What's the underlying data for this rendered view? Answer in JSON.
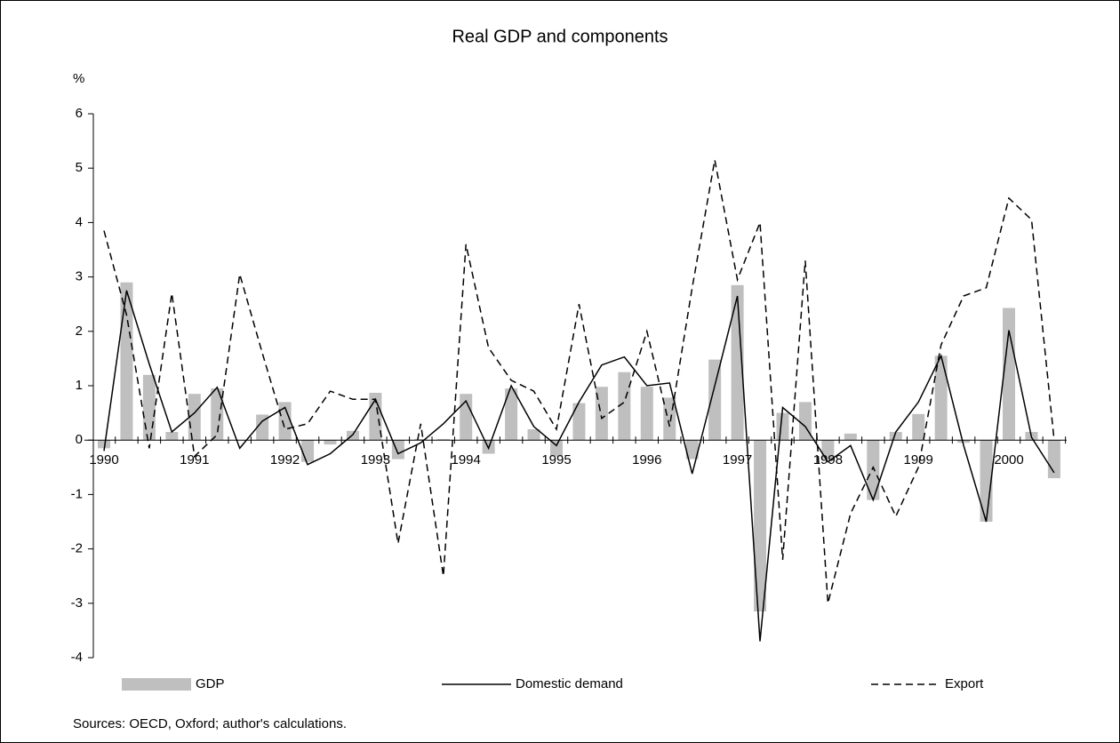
{
  "chart_data": {
    "type": "bar-line",
    "title": "Real GDP and components",
    "y_unit": "%",
    "source": "Sources: OECD, Oxford; author's calculations.",
    "categories": [
      "1990",
      null,
      null,
      null,
      "1991",
      null,
      null,
      null,
      "1992",
      null,
      null,
      null,
      "1993",
      null,
      null,
      null,
      "1994",
      null,
      null,
      null,
      "1995",
      null,
      null,
      null,
      "1996",
      null,
      null,
      null,
      "1997",
      null,
      null,
      null,
      "1998",
      null,
      null,
      null,
      "1999",
      null,
      null,
      null,
      "2000",
      null,
      null
    ],
    "series": [
      {
        "name": "GDP",
        "kind": "bar",
        "color": "#bfbfbf",
        "values": [
          -0.15,
          2.9,
          1.2,
          0.15,
          0.85,
          0.95,
          0,
          0.47,
          0.7,
          -0.4,
          -0.08,
          0.17,
          0.87,
          -0.35,
          0.02,
          0.02,
          0.85,
          -0.25,
          0.95,
          0.2,
          -0.3,
          0.68,
          0.98,
          1.25,
          0.98,
          0.78,
          -0.35,
          1.48,
          2.85,
          -3.15,
          0.5,
          0.7,
          -0.35,
          0.12,
          -1.1,
          0.15,
          0.48,
          1.55,
          -0.05,
          -1.5,
          2.43,
          0.15,
          -0.7
        ]
      },
      {
        "name": "Domestic demand",
        "kind": "line",
        "dash": "solid",
        "color": "#000000",
        "values": [
          -0.2,
          2.75,
          1.4,
          0.15,
          0.5,
          0.97,
          -0.15,
          0.35,
          0.6,
          -0.45,
          -0.25,
          0.1,
          0.75,
          -0.25,
          -0.05,
          0.3,
          0.72,
          -0.15,
          1.0,
          0.25,
          -0.1,
          0.7,
          1.38,
          1.53,
          1.0,
          1.05,
          -0.62,
          1.0,
          2.65,
          -3.7,
          0.6,
          0.25,
          -0.4,
          -0.1,
          -1.1,
          0.15,
          0.7,
          1.55,
          -0.1,
          -1.5,
          2.02,
          0.05,
          -0.6
        ]
      },
      {
        "name": "Export",
        "kind": "line",
        "dash": "dashed",
        "color": "#000000",
        "values": [
          3.85,
          2.3,
          -0.15,
          2.7,
          -0.3,
          0.1,
          3.05,
          1.6,
          0.2,
          0.3,
          0.9,
          0.75,
          0.75,
          -1.9,
          0.3,
          -2.5,
          3.6,
          1.7,
          1.1,
          0.9,
          0.2,
          2.5,
          0.4,
          0.7,
          2.0,
          0.25,
          2.8,
          5.15,
          2.95,
          4.0,
          -2.2,
          3.3,
          -3.0,
          -1.35,
          -0.5,
          -1.4,
          -0.5,
          1.75,
          2.65,
          2.8,
          4.45,
          4.05,
          0.0
        ]
      }
    ],
    "ylim": [
      -4,
      6
    ],
    "yticks": [
      -4,
      -3,
      -2,
      -1,
      0,
      1,
      2,
      3,
      4,
      5,
      6
    ],
    "grid": false,
    "legend": "bottom"
  }
}
